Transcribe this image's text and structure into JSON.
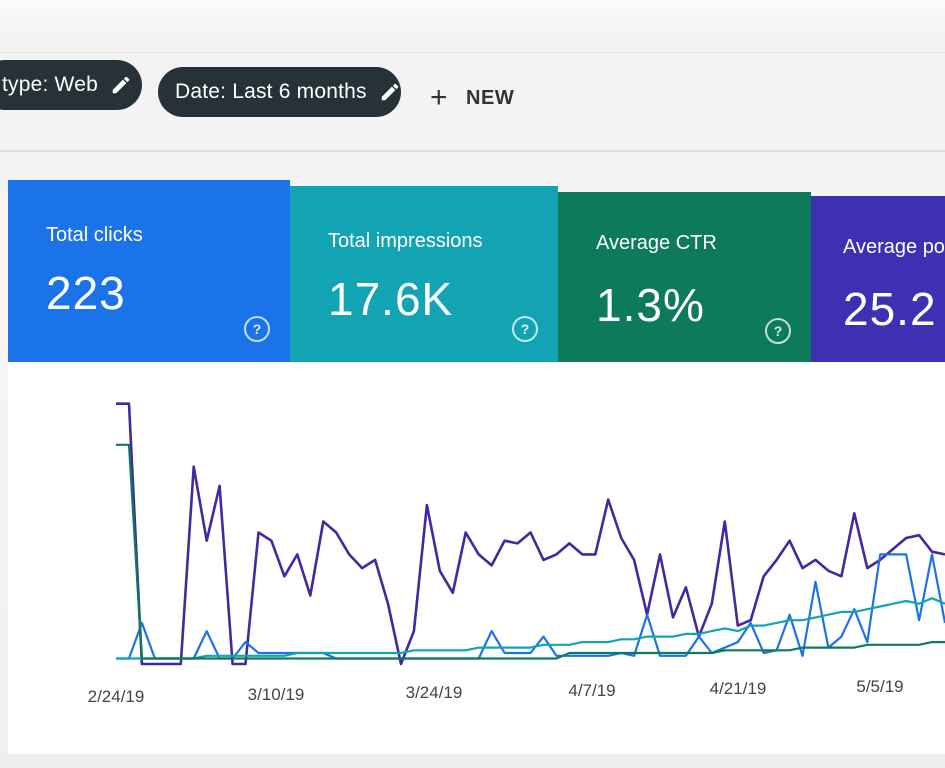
{
  "filters": {
    "type_chip": "type: Web",
    "date_chip": "Date: Last 6 months",
    "new_button": "NEW",
    "icons": {
      "edit": "pencil-icon",
      "add": "plus-icon",
      "help": "help-circle-icon"
    }
  },
  "metrics": [
    {
      "label": "Total clicks",
      "value": "223",
      "color": "#1a73e8"
    },
    {
      "label": "Total impressions",
      "value": "17.6K",
      "color": "#13a4b4"
    },
    {
      "label": "Average CTR",
      "value": "1.3%",
      "color": "#0d7a5c"
    },
    {
      "label": "Average posi",
      "value": "25.2",
      "color": "#3f2fb3"
    }
  ],
  "chart_data": {
    "type": "line",
    "x_ticks": [
      "2/24/19",
      "3/10/19",
      "3/24/19",
      "4/7/19",
      "4/21/19",
      "5/5/19"
    ],
    "series": [
      {
        "color": "#4527a0",
        "values": [
          95,
          95,
          0,
          0,
          0,
          0,
          72,
          45,
          65,
          0,
          0,
          48,
          45,
          32,
          40,
          25,
          52,
          48,
          40,
          35,
          38,
          22,
          0,
          12,
          58,
          34,
          26,
          48,
          40,
          36,
          45,
          44,
          48,
          38,
          40,
          44,
          40,
          40,
          60,
          46,
          38,
          18,
          40,
          17,
          28,
          10,
          22,
          52,
          14,
          16,
          32,
          38,
          45,
          35,
          38,
          34,
          32,
          55,
          35,
          38,
          42,
          46,
          47,
          41,
          40
        ]
      },
      {
        "color": "#1a73e8",
        "values": [
          2,
          2,
          15,
          2,
          2,
          2,
          2,
          12,
          2,
          2,
          8,
          4,
          4,
          4,
          4,
          4,
          4,
          2,
          2,
          2,
          2,
          2,
          2,
          2,
          2,
          2,
          2,
          2,
          2,
          12,
          4,
          4,
          4,
          10,
          3,
          3,
          3,
          3,
          3,
          4,
          3,
          18,
          3,
          3,
          3,
          10,
          4,
          6,
          8,
          15,
          4,
          5,
          18,
          3,
          30,
          6,
          10,
          20,
          8,
          40,
          40,
          40,
          16,
          40,
          15
        ]
      },
      {
        "color": "#12a4b4",
        "values": [
          2,
          2,
          2,
          2,
          2,
          2,
          2,
          3,
          3,
          3,
          3,
          3,
          3,
          3,
          4,
          4,
          4,
          4,
          4,
          4,
          4,
          4,
          4,
          5,
          5,
          5,
          5,
          5,
          6,
          6,
          6,
          6,
          6,
          7,
          7,
          7,
          8,
          8,
          8,
          9,
          9,
          10,
          10,
          10,
          11,
          11,
          12,
          13,
          12,
          14,
          14,
          15,
          16,
          16,
          17,
          18,
          19,
          19,
          20,
          21,
          22,
          23,
          22,
          24,
          22
        ]
      },
      {
        "color": "#0d7a5c",
        "values": [
          80,
          80,
          2,
          2,
          2,
          2,
          2,
          2,
          2,
          2,
          2,
          2,
          2,
          2,
          2,
          2,
          2,
          2,
          2,
          2,
          2,
          2,
          2,
          2,
          2,
          2,
          2,
          2,
          2,
          2,
          2,
          2,
          2,
          2,
          2,
          4,
          4,
          4,
          4,
          4,
          4,
          4,
          4,
          4,
          4,
          4,
          4,
          5,
          5,
          5,
          5,
          5,
          5,
          6,
          6,
          6,
          6,
          6,
          7,
          7,
          7,
          7,
          7,
          8,
          8
        ]
      }
    ]
  }
}
